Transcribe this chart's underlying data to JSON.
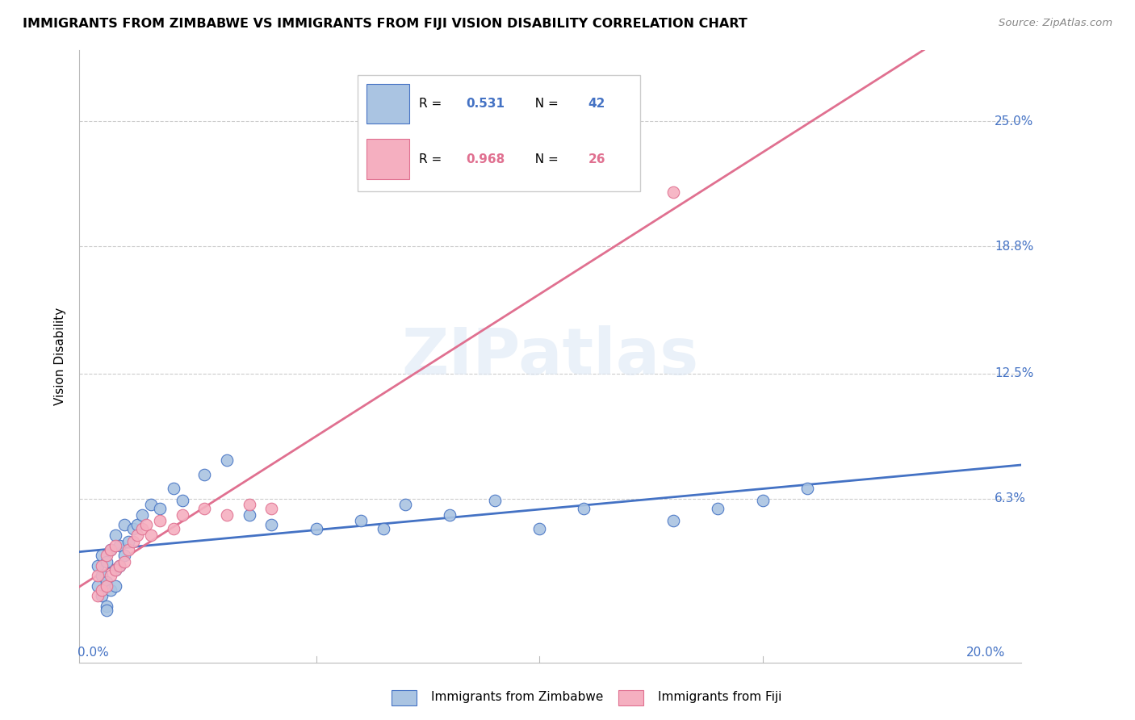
{
  "title": "IMMIGRANTS FROM ZIMBABWE VS IMMIGRANTS FROM FIJI VISION DISABILITY CORRELATION CHART",
  "source": "Source: ZipAtlas.com",
  "ylabel": "Vision Disability",
  "ytick_vals": [
    0.063,
    0.125,
    0.188,
    0.25
  ],
  "ytick_labels": [
    "6.3%",
    "12.5%",
    "18.8%",
    "25.0%"
  ],
  "xlim": [
    -0.003,
    0.208
  ],
  "ylim": [
    -0.018,
    0.285
  ],
  "color_zimbabwe": "#aac4e2",
  "color_fiji": "#f5afc0",
  "line_color_zimbabwe": "#4472c4",
  "line_color_fiji": "#e07090",
  "watermark": "ZIPatlas",
  "zim_x": [
    0.001,
    0.001,
    0.002,
    0.002,
    0.002,
    0.003,
    0.003,
    0.003,
    0.004,
    0.004,
    0.005,
    0.005,
    0.005,
    0.006,
    0.006,
    0.007,
    0.007,
    0.008,
    0.009,
    0.01,
    0.011,
    0.013,
    0.015,
    0.018,
    0.02,
    0.025,
    0.03,
    0.035,
    0.04,
    0.05,
    0.06,
    0.065,
    0.07,
    0.08,
    0.09,
    0.1,
    0.11,
    0.13,
    0.14,
    0.15,
    0.16,
    0.003
  ],
  "zim_y": [
    0.02,
    0.03,
    0.015,
    0.025,
    0.035,
    0.01,
    0.022,
    0.032,
    0.018,
    0.038,
    0.02,
    0.028,
    0.045,
    0.03,
    0.04,
    0.035,
    0.05,
    0.042,
    0.048,
    0.05,
    0.055,
    0.06,
    0.058,
    0.068,
    0.062,
    0.075,
    0.082,
    0.055,
    0.05,
    0.048,
    0.052,
    0.048,
    0.06,
    0.055,
    0.062,
    0.048,
    0.058,
    0.052,
    0.058,
    0.062,
    0.068,
    0.008
  ],
  "fiji_x": [
    0.001,
    0.001,
    0.002,
    0.002,
    0.003,
    0.003,
    0.004,
    0.004,
    0.005,
    0.005,
    0.006,
    0.007,
    0.008,
    0.009,
    0.01,
    0.011,
    0.012,
    0.013,
    0.015,
    0.018,
    0.02,
    0.025,
    0.03,
    0.035,
    0.04,
    0.13
  ],
  "fiji_y": [
    0.015,
    0.025,
    0.018,
    0.03,
    0.02,
    0.035,
    0.025,
    0.038,
    0.028,
    0.04,
    0.03,
    0.032,
    0.038,
    0.042,
    0.045,
    0.048,
    0.05,
    0.045,
    0.052,
    0.048,
    0.055,
    0.058,
    0.055,
    0.06,
    0.058,
    0.215
  ]
}
